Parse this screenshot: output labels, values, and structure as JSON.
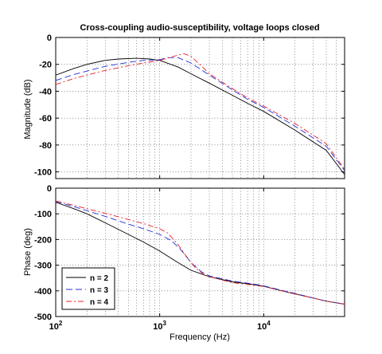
{
  "chart_data": [
    {
      "type": "line",
      "title": "Cross-coupling audio-susceptibility, voltage loops closed",
      "xlabel": "",
      "ylabel": "Magnitude (dB)",
      "xscale": "log",
      "xlim": [
        100,
        60000
      ],
      "ylim": [
        -105,
        0
      ],
      "yticks": [
        0,
        -20,
        -40,
        -60,
        -80,
        -100
      ],
      "ytick_labels": [
        "0",
        "-20",
        "-40",
        "-60",
        "-80",
        "-100"
      ],
      "xtick_labels": [],
      "grid": true,
      "series": [
        {
          "name": "n = 2",
          "color": "#000000",
          "dash": "solid",
          "x": [
            100,
            150,
            200,
            300,
            400,
            600,
            800,
            1000,
            1500,
            2000,
            3000,
            5000,
            7000,
            10000,
            20000,
            40000,
            60000
          ],
          "y": [
            -28,
            -23,
            -20,
            -17,
            -16,
            -15.5,
            -16,
            -17,
            -22,
            -27,
            -34,
            -43,
            -49,
            -55,
            -69,
            -84,
            -102
          ]
        },
        {
          "name": "n = 3",
          "color": "#2430d8",
          "dash": "8,4",
          "x": [
            100,
            150,
            200,
            300,
            500,
            700,
            1000,
            1200,
            1500,
            2000,
            3000,
            5000,
            7000,
            10000,
            20000,
            40000,
            60000
          ],
          "y": [
            -32,
            -27.5,
            -25,
            -21.5,
            -18.5,
            -17,
            -16.5,
            -15,
            -15,
            -19,
            -28,
            -39,
            -46,
            -52,
            -66,
            -81,
            -99
          ]
        },
        {
          "name": "n = 4",
          "color": "#e8202a",
          "dash": "7,3,2,3",
          "x": [
            100,
            150,
            200,
            300,
            500,
            700,
            1000,
            1300,
            1700,
            2000,
            2500,
            3000,
            5000,
            7000,
            10000,
            20000,
            40000,
            60000
          ],
          "y": [
            -35,
            -30.5,
            -28,
            -24.5,
            -21,
            -19,
            -17,
            -14.5,
            -12,
            -14,
            -21,
            -27,
            -38,
            -45,
            -51,
            -64,
            -79,
            -98
          ]
        }
      ]
    },
    {
      "type": "line",
      "title": "",
      "xlabel": "Frequency  (Hz)",
      "ylabel": "Phase (deg)",
      "xscale": "log",
      "xlim": [
        100,
        60000
      ],
      "ylim": [
        -500,
        0
      ],
      "yticks": [
        0,
        -100,
        -200,
        -300,
        -400,
        -500
      ],
      "ytick_labels": [
        "0",
        "-100",
        "-200",
        "-300",
        "-400",
        "-500"
      ],
      "xticks": [
        100,
        1000,
        10000
      ],
      "xtick_labels": [
        {
          "base": "10",
          "exp": "2"
        },
        {
          "base": "10",
          "exp": "3"
        },
        {
          "base": "10",
          "exp": "4"
        }
      ],
      "grid": true,
      "legend": {
        "placement": "bottom-left",
        "entries": [
          "n = 2",
          "n = 3",
          "n = 4"
        ]
      },
      "series": [
        {
          "name": "n = 2",
          "color": "#000000",
          "dash": "solid",
          "x": [
            100,
            150,
            200,
            300,
            500,
            700,
            1000,
            1500,
            2000,
            3000,
            5000,
            7000,
            10000,
            15000,
            20000,
            30000,
            40000,
            60000
          ],
          "y": [
            -55,
            -80,
            -100,
            -135,
            -180,
            -210,
            -245,
            -290,
            -320,
            -345,
            -365,
            -372,
            -382,
            -400,
            -412,
            -428,
            -440,
            -452
          ]
        },
        {
          "name": "n = 3",
          "color": "#2430d8",
          "dash": "8,4",
          "x": [
            100,
            150,
            200,
            300,
            500,
            700,
            1000,
            1300,
            1600,
            2000,
            2500,
            3000,
            5000,
            7000,
            10000,
            15000,
            20000,
            30000,
            40000,
            60000
          ],
          "y": [
            -52,
            -72,
            -88,
            -110,
            -140,
            -158,
            -180,
            -205,
            -240,
            -290,
            -325,
            -342,
            -362,
            -370,
            -380,
            -398,
            -410,
            -428,
            -440,
            -452
          ]
        },
        {
          "name": "n = 4",
          "color": "#e8202a",
          "dash": "7,3,2,3",
          "x": [
            100,
            150,
            200,
            300,
            500,
            700,
            1000,
            1200,
            1500,
            1800,
            2200,
            2700,
            3000,
            5000,
            7000,
            10000,
            15000,
            20000,
            30000,
            40000,
            60000
          ],
          "y": [
            -50,
            -67,
            -80,
            -98,
            -122,
            -138,
            -158,
            -175,
            -220,
            -265,
            -310,
            -338,
            -345,
            -368,
            -375,
            -383,
            -400,
            -412,
            -428,
            -440,
            -452
          ]
        }
      ]
    }
  ]
}
